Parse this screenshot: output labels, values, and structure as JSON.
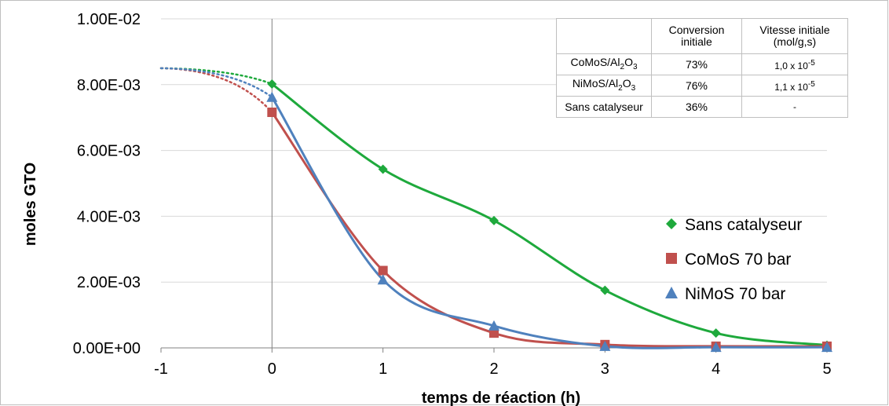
{
  "chart_data": {
    "type": "scatter",
    "xlabel": "temps de réaction (h)",
    "ylabel": "moles GTO",
    "xlim": [
      -1,
      5
    ],
    "ylim": [
      0,
      0.01
    ],
    "x_ticks": [
      "-1",
      "0",
      "1",
      "2",
      "3",
      "4",
      "5"
    ],
    "y_ticks": [
      "0.00E+00",
      "2.00E-03",
      "4.00E-03",
      "6.00E-03",
      "8.00E-03",
      "1.00E-02"
    ],
    "legend_position": "right",
    "grid": "horizontal",
    "series": [
      {
        "name": "Sans catalyseur",
        "marker": "diamond",
        "color": "#1ea93c",
        "x": [
          0,
          1,
          2,
          3,
          4,
          5
        ],
        "y": [
          0.00802,
          0.00543,
          0.00387,
          0.00175,
          0.00045,
          8e-05
        ],
        "extrapolated_start": 0.0085
      },
      {
        "name": "CoMoS 70 bar",
        "marker": "square",
        "color": "#c0504d",
        "x": [
          0,
          1,
          2,
          3,
          4,
          5
        ],
        "y": [
          0.00716,
          0.00235,
          0.00045,
          0.0001,
          5e-05,
          5e-05
        ],
        "extrapolated_start": 0.0085
      },
      {
        "name": "NiMoS 70 bar",
        "marker": "triangle",
        "color": "#4f81bd",
        "x": [
          0,
          1,
          2,
          3,
          4,
          5
        ],
        "y": [
          0.00762,
          0.00207,
          0.00067,
          5e-05,
          2e-05,
          2e-05
        ],
        "extrapolated_start": 0.0085
      }
    ]
  },
  "table": {
    "headers": [
      "",
      "Conversion initiale",
      "Vitesse initiale (mol/g,s)"
    ],
    "rows": [
      {
        "catalyst": "CoMoS/Al2O3",
        "conversion": "73%",
        "rate": "1,0 x 10-5"
      },
      {
        "catalyst": "NiMoS/Al2O3",
        "conversion": "76%",
        "rate": "1,1 x 10-5"
      },
      {
        "catalyst": "Sans catalyseur",
        "conversion": "36%",
        "rate": "-"
      }
    ]
  }
}
